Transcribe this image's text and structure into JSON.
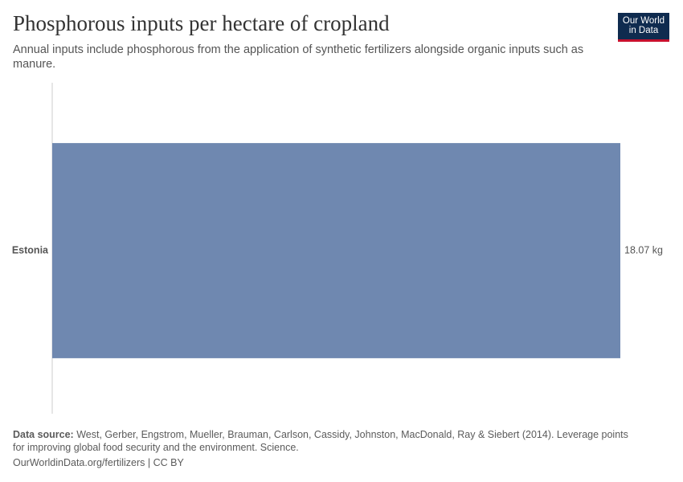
{
  "chart_data": {
    "type": "bar",
    "orientation": "horizontal",
    "title": "Phosphorous inputs per hectare of cropland",
    "subtitle": "Annual inputs include phosphorous from the application of synthetic fertilizers alongside organic inputs such as manure.",
    "categories": [
      "Estonia"
    ],
    "values": [
      18.07
    ],
    "value_labels": [
      "18.07 kg"
    ],
    "color": "#6f88b0",
    "logo": [
      "Our World",
      "in Data"
    ],
    "source_label": "Data source:",
    "source": "West, Gerber, Engstrom, Mueller, Brauman, Carlson, Cassidy, Johnston, MacDonald, Ray & Siebert (2014). Leverage points for improving global food security and the environment. Science.",
    "footer": "OurWorldinData.org/fertilizers | CC BY"
  }
}
